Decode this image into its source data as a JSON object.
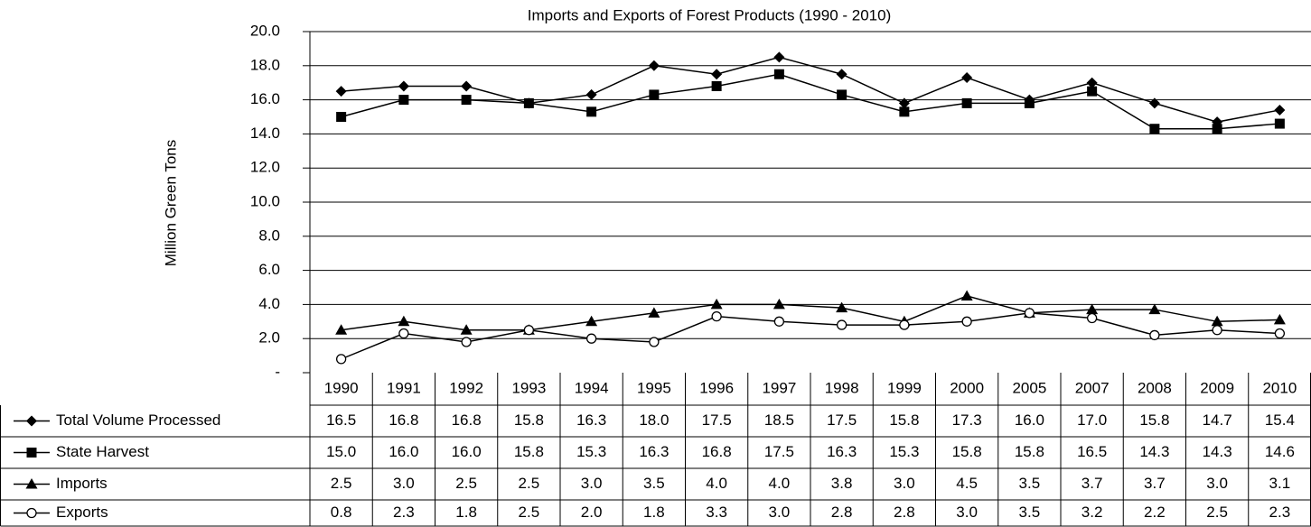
{
  "chart_data": {
    "type": "line",
    "title": "Imports and Exports of Forest Products (1990 - 2010)",
    "y_label": "Million Green Tons",
    "categories": [
      "1990",
      "1991",
      "1992",
      "1993",
      "1994",
      "1995",
      "1996",
      "1997",
      "1998",
      "1999",
      "2000",
      "2005",
      "2007",
      "2008",
      "2009",
      "2010"
    ],
    "series": [
      {
        "name": "Total Volume Processed",
        "color": "#000000",
        "marker": "diamond",
        "values": [
          16.5,
          16.8,
          16.8,
          15.8,
          16.3,
          18.0,
          17.5,
          18.5,
          17.5,
          15.8,
          17.3,
          16.0,
          17.0,
          15.8,
          14.7,
          15.4
        ],
        "value_labels": [
          "16.5",
          "16.8",
          "16.8",
          "15.8",
          "16.3",
          "18.0",
          "17.5",
          "18.5",
          "17.5",
          "15.8",
          "17.3",
          "16.0",
          "17.0",
          "15.8",
          "14.7",
          "15.4"
        ]
      },
      {
        "name": "State Harvest",
        "color": "#000000",
        "marker": "square",
        "values": [
          15.0,
          16.0,
          16.0,
          15.8,
          15.3,
          16.3,
          16.8,
          17.5,
          16.3,
          15.3,
          15.8,
          15.8,
          16.5,
          14.3,
          14.3,
          14.6
        ],
        "value_labels": [
          "15.0",
          "16.0",
          "16.0",
          "15.8",
          "15.3",
          "16.3",
          "16.8",
          "17.5",
          "16.3",
          "15.3",
          "15.8",
          "15.8",
          "16.5",
          "14.3",
          "14.3",
          "14.6"
        ]
      },
      {
        "name": "Imports",
        "color": "#000000",
        "marker": "triangle",
        "values": [
          2.5,
          3.0,
          2.5,
          2.5,
          3.0,
          3.5,
          4.0,
          4.0,
          3.8,
          3.0,
          4.5,
          3.5,
          3.7,
          3.7,
          3.0,
          3.1
        ],
        "value_labels": [
          "2.5",
          "3.0",
          "2.5",
          "2.5",
          "3.0",
          "3.5",
          "4.0",
          "4.0",
          "3.8",
          "3.0",
          "4.5",
          "3.5",
          "3.7",
          "3.7",
          "3.0",
          "3.1"
        ]
      },
      {
        "name": "Exports",
        "color": "#000000",
        "marker": "circle",
        "values": [
          0.8,
          2.3,
          1.8,
          2.5,
          2.0,
          1.8,
          3.3,
          3.0,
          2.8,
          2.8,
          3.0,
          3.5,
          3.2,
          2.2,
          2.5,
          2.3
        ],
        "value_labels": [
          "0.8",
          "2.3",
          "1.8",
          "2.5",
          "2.0",
          "1.8",
          "3.3",
          "3.0",
          "2.8",
          "2.8",
          "3.0",
          "3.5",
          "3.2",
          "2.2",
          "2.5",
          "2.3"
        ]
      }
    ],
    "ylim": [
      0,
      20
    ],
    "yticks": [
      {
        "value": 0,
        "label": "-"
      },
      {
        "value": 2,
        "label": "2.0"
      },
      {
        "value": 4,
        "label": "4.0"
      },
      {
        "value": 6,
        "label": "6.0"
      },
      {
        "value": 8,
        "label": "8.0"
      },
      {
        "value": 10,
        "label": "10.0"
      },
      {
        "value": 12,
        "label": "12.0"
      },
      {
        "value": 14,
        "label": "14.0"
      },
      {
        "value": 16,
        "label": "16.0"
      },
      {
        "value": 18,
        "label": "18.0"
      },
      {
        "value": 20,
        "label": "20.0"
      }
    ],
    "grid": true
  }
}
